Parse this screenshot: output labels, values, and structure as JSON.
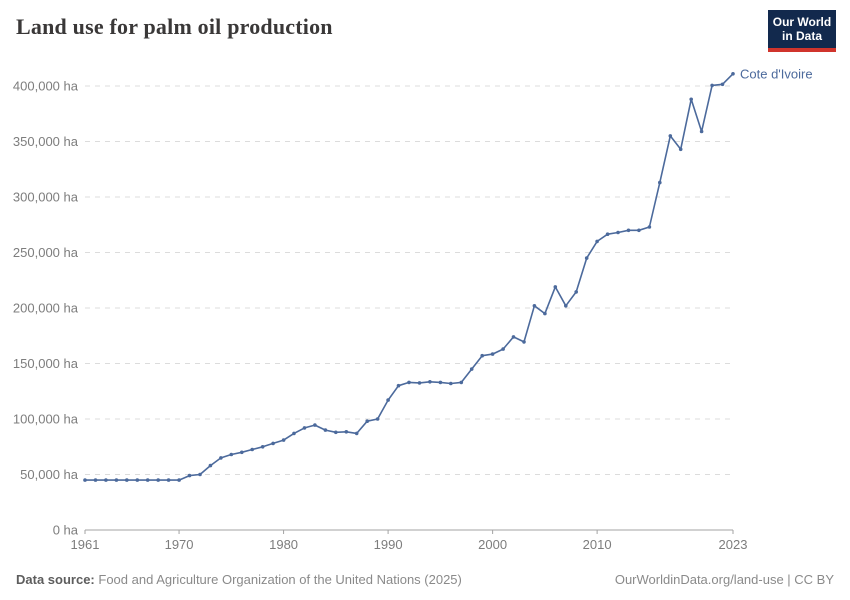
{
  "header": {
    "title": "Land use for palm oil production",
    "logo": {
      "line1": "Our World",
      "line2": "in Data"
    }
  },
  "colors": {
    "line": "#4c6a9c",
    "grid": "#dcdcdc",
    "axis": "#a3a3a3",
    "tick_text": "#7d7d7d",
    "logo_bg": "#12294d",
    "logo_accent": "#d0342c"
  },
  "chart_data": {
    "type": "line",
    "title": "Land use for palm oil production",
    "entity_label": "Cote d'Ivoire",
    "unit": "ha",
    "grid": "horizontal-dashed",
    "legend_position": "end-of-line-label",
    "xlim": [
      1961,
      2023
    ],
    "ylim": [
      0,
      400000
    ],
    "x_ticks": [
      {
        "value": 1961,
        "label": "1961"
      },
      {
        "value": 1970,
        "label": "1970"
      },
      {
        "value": 1980,
        "label": "1980"
      },
      {
        "value": 1990,
        "label": "1990"
      },
      {
        "value": 2000,
        "label": "2000"
      },
      {
        "value": 2010,
        "label": "2010"
      },
      {
        "value": 2023,
        "label": "2023"
      }
    ],
    "y_ticks": [
      {
        "value": 0,
        "label": "0 ha"
      },
      {
        "value": 50000,
        "label": "50,000 ha"
      },
      {
        "value": 100000,
        "label": "100,000 ha"
      },
      {
        "value": 150000,
        "label": "150,000 ha"
      },
      {
        "value": 200000,
        "label": "200,000 ha"
      },
      {
        "value": 250000,
        "label": "250,000 ha"
      },
      {
        "value": 300000,
        "label": "300,000 ha"
      },
      {
        "value": 350000,
        "label": "350,000 ha"
      },
      {
        "value": 400000,
        "label": "400,000 ha"
      }
    ],
    "x": [
      1961,
      1962,
      1963,
      1964,
      1965,
      1966,
      1967,
      1968,
      1969,
      1970,
      1971,
      1972,
      1973,
      1974,
      1975,
      1976,
      1977,
      1978,
      1979,
      1980,
      1981,
      1982,
      1983,
      1984,
      1985,
      1986,
      1987,
      1988,
      1989,
      1990,
      1991,
      1992,
      1993,
      1994,
      1995,
      1996,
      1997,
      1998,
      1999,
      2000,
      2001,
      2002,
      2003,
      2004,
      2005,
      2006,
      2007,
      2008,
      2009,
      2010,
      2011,
      2012,
      2013,
      2014,
      2015,
      2016,
      2017,
      2018,
      2019,
      2020,
      2021,
      2022,
      2023
    ],
    "values": [
      45000,
      45000,
      45000,
      45000,
      45000,
      45000,
      45000,
      45000,
      45000,
      45000,
      49000,
      50000,
      58000,
      65000,
      68000,
      70000,
      72500,
      75000,
      78000,
      81000,
      87000,
      92000,
      94500,
      90000,
      88000,
      88500,
      87000,
      98000,
      100000,
      117000,
      130000,
      133000,
      132500,
      133500,
      133000,
      132000,
      133000,
      145000,
      157000,
      158500,
      163000,
      174000,
      169500,
      202000,
      195000,
      219000,
      202000,
      214500,
      245000,
      260000,
      266500,
      268000,
      270000,
      270000,
      273000,
      313000,
      355000,
      343000,
      388000,
      359000,
      400500,
      401500,
      411000
    ]
  },
  "footer": {
    "source_label": "Data source:",
    "source_text": "Food and Agriculture Organization of the United Nations (2025)",
    "link_text": "OurWorldinData.org/land-use | CC BY"
  }
}
